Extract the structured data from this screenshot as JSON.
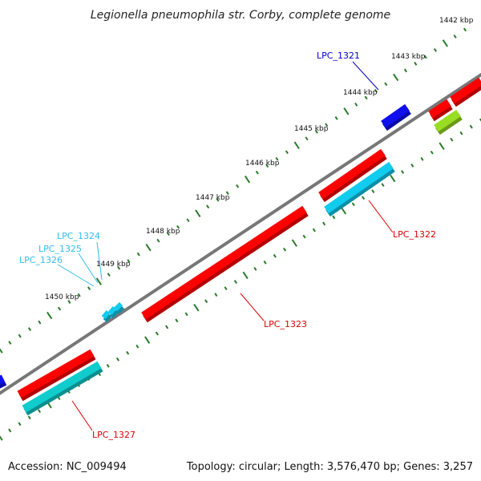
{
  "title": "Legionella pneumophila str. Corby, complete genome",
  "footer": {
    "accession": "Accession: NC_009494",
    "summary": "Topology: circular; Length: 3,576,470 bp; Genes: 3,257"
  },
  "ticks": [
    "1442 kbp",
    "1443 kbp",
    "1444 kbp",
    "1445 kbp",
    "1446 kbp",
    "1447 kbp",
    "1448 kbp",
    "1449 kbp",
    "1450 kbp"
  ],
  "genes": [
    {
      "name": "LPC_1321",
      "color": "#0000cc"
    },
    {
      "name": "LPC_1322",
      "color": "#dd0000"
    },
    {
      "name": "LPC_1323",
      "color": "#dd0000"
    },
    {
      "name": "LPC_1324",
      "color": "#33bbee"
    },
    {
      "name": "LPC_1325",
      "color": "#33bbee"
    },
    {
      "name": "LPC_1326",
      "color": "#33bbee"
    },
    {
      "name": "LPC_1327",
      "color": "#dd0000"
    }
  ],
  "colors": {
    "backbone": "#777777",
    "tick": "#2a7a2a",
    "red": "#ff0000",
    "blue": "#1010ee",
    "cyan": "#11ccee",
    "teal": "#11cccc",
    "lime": "#99dd22"
  }
}
